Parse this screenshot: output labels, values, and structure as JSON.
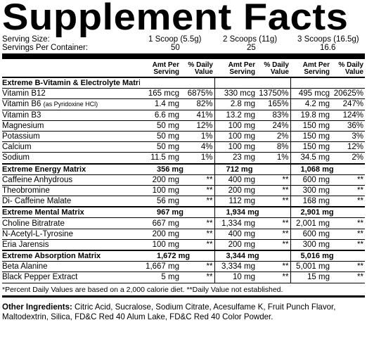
{
  "title": "Supplement Facts",
  "serving": {
    "size_label": "Serving Size:",
    "container_label": "Servings Per Container:",
    "columns": [
      {
        "size": "1 Scoop (5.5g)",
        "servings": "50"
      },
      {
        "size": "2 Scoops (11g)",
        "servings": "25"
      },
      {
        "size": "3 Scoops (16.5g)",
        "servings": "16.6"
      }
    ]
  },
  "headers": {
    "amt": "Amt Per\nServing",
    "dv": "% Daily\nValue"
  },
  "sections": [
    {
      "name": "Extreme B-Vitamin & Electrolyte Matrix",
      "totals": [
        "",
        "",
        ""
      ],
      "rows": [
        {
          "name": "Vitamin B12",
          "note": "",
          "v": [
            "165 mcg",
            "6875%",
            "330 mcg",
            "13750%",
            "495 mcg",
            "20625%"
          ]
        },
        {
          "name": "Vitamin B6",
          "note": "(as Pyridoxine HCl)",
          "v": [
            "1.4 mg",
            "82%",
            "2.8 mg",
            "165%",
            "4.2 mg",
            "247%"
          ]
        },
        {
          "name": "Vitamin B3",
          "note": "",
          "v": [
            "6.6 mg",
            "41%",
            "13.2 mg",
            "83%",
            "19.8 mg",
            "124%"
          ]
        },
        {
          "name": "Magnesium",
          "note": "",
          "v": [
            "50 mg",
            "12%",
            "100 mg",
            "24%",
            "150 mg",
            "36%"
          ]
        },
        {
          "name": "Potassium",
          "note": "",
          "v": [
            "50 mg",
            "1%",
            "100 mg",
            "2%",
            "150 mg",
            "3%"
          ]
        },
        {
          "name": "Calcium",
          "note": "",
          "v": [
            "50 mg",
            "4%",
            "100 mg",
            "8%",
            "150 mg",
            "12%"
          ]
        },
        {
          "name": "Sodium",
          "note": "",
          "v": [
            "11.5 mg",
            "1%",
            "23 mg",
            "1%",
            "34.5 mg",
            "2%"
          ]
        }
      ]
    },
    {
      "name": "Extreme Energy Matrix",
      "totals": [
        "356 mg",
        "712 mg",
        "1,068 mg"
      ],
      "rows": [
        {
          "name": "Caffeine Anhydrous",
          "note": "",
          "v": [
            "200 mg",
            "**",
            "400 mg",
            "**",
            "600 mg",
            "**"
          ]
        },
        {
          "name": "Theobromine",
          "note": "",
          "v": [
            "100 mg",
            "**",
            "200 mg",
            "**",
            "300 mg",
            "**"
          ]
        },
        {
          "name": "Di- Caffeine Malate",
          "note": "",
          "v": [
            "56 mg",
            "**",
            "112 mg",
            "**",
            "168 mg",
            "**"
          ]
        }
      ]
    },
    {
      "name": "Extreme Mental Matrix",
      "totals": [
        "967 mg",
        "1,934 mg",
        "2,901 mg"
      ],
      "rows": [
        {
          "name": "Choline Bitratrate",
          "note": "",
          "v": [
            "667 mg",
            "**",
            "1,334 mg",
            "**",
            "2,001 mg",
            "**"
          ]
        },
        {
          "name": "N-Acetyl-L-Tyrosine",
          "note": "",
          "v": [
            "200 mg",
            "**",
            "400 mg",
            "**",
            "600 mg",
            "**"
          ]
        },
        {
          "name": "Eria Jarensis",
          "note": "",
          "v": [
            "100 mg",
            "**",
            "200 mg",
            "**",
            "300 mg",
            "**"
          ]
        }
      ]
    },
    {
      "name": "Extreme Absorption Matrix",
      "totals": [
        "1,672 mg",
        "3,344 mg",
        "5,016 mg"
      ],
      "rows": [
        {
          "name": "Beta Alanine",
          "note": "",
          "v": [
            "1,667 mg",
            "**",
            "3,334 mg",
            "**",
            "5,001 mg",
            "**"
          ]
        },
        {
          "name": "Black Pepper Extract",
          "note": "",
          "v": [
            "5 mg",
            "**",
            "10 mg",
            "**",
            "15 mg",
            "**"
          ]
        }
      ]
    }
  ],
  "footnote": "*Percent Daily Values are based on a 2,000 calorie diet. **Daily Value not established.",
  "ingredients": {
    "label": "Other Ingredients:",
    "text": " Citric Acid, Sucralose, Sodium Citrate, Acesulfame K, Fruit Punch Flavor, Maltodextrin, Silica, FD&C Red 40 Alum Lake, FD&C Red 40 Color Powder."
  }
}
